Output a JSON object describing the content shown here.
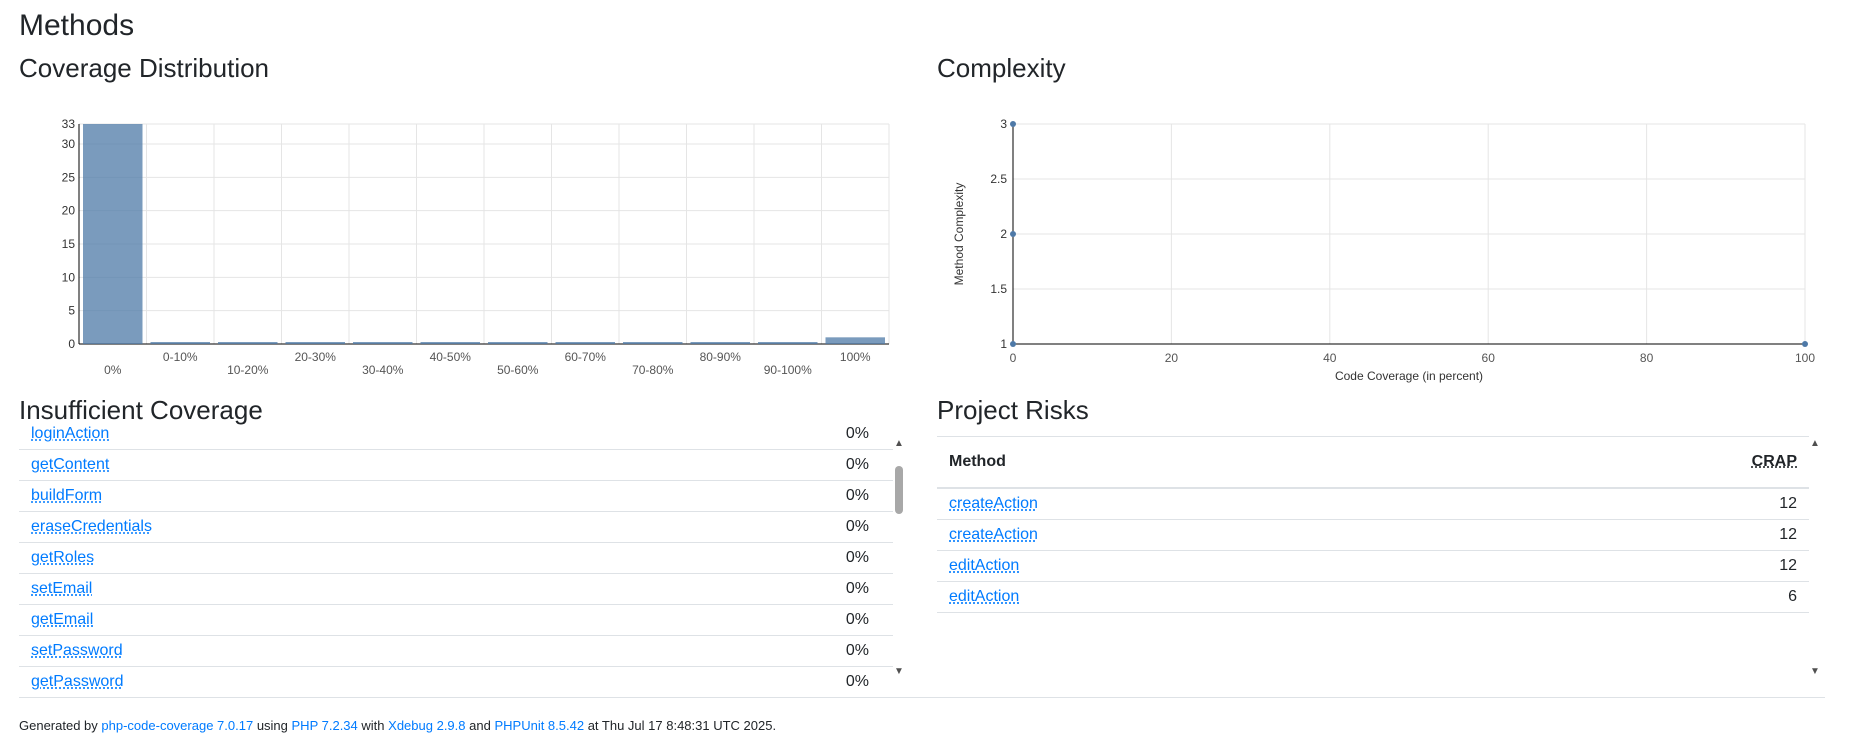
{
  "page": {
    "title": "Methods"
  },
  "coverage_distribution": {
    "heading": "Coverage Distribution"
  },
  "complexity": {
    "heading": "Complexity"
  },
  "insufficient_coverage": {
    "heading": "Insufficient Coverage",
    "rows": [
      {
        "name": "loginAction",
        "value": "0%"
      },
      {
        "name": "getContent",
        "value": "0%"
      },
      {
        "name": "buildForm",
        "value": "0%"
      },
      {
        "name": "eraseCredentials",
        "value": "0%"
      },
      {
        "name": "getRoles",
        "value": "0%"
      },
      {
        "name": "setEmail",
        "value": "0%"
      },
      {
        "name": "getEmail",
        "value": "0%"
      },
      {
        "name": "setPassword",
        "value": "0%"
      },
      {
        "name": "getPassword",
        "value": "0%"
      }
    ]
  },
  "project_risks": {
    "heading": "Project Risks",
    "col_method": "Method",
    "col_crap": "CRAP",
    "rows": [
      {
        "name": "createAction",
        "value": "12"
      },
      {
        "name": "createAction",
        "value": "12"
      },
      {
        "name": "editAction",
        "value": "12"
      },
      {
        "name": "editAction",
        "value": "6"
      }
    ]
  },
  "footer": {
    "prefix": "Generated by",
    "tool": "php-code-coverage 7.0.17",
    "using": "using",
    "php": "PHP 7.2.34",
    "with": "with",
    "xdebug": "Xdebug 2.9.8",
    "and": "and",
    "phpunit": "PHPUnit 8.5.42",
    "suffix": "at Thu Jul 17 8:48:31 UTC 2025."
  },
  "chart_data": [
    {
      "type": "bar",
      "title": "Coverage Distribution",
      "categories": [
        "0%",
        "0-10%",
        "10-20%",
        "20-30%",
        "30-40%",
        "40-50%",
        "50-60%",
        "60-70%",
        "70-80%",
        "80-90%",
        "90-100%",
        "100%"
      ],
      "values": [
        33,
        0,
        0,
        0,
        0,
        0,
        0,
        0,
        0,
        0,
        0,
        1
      ],
      "yticks": [
        0,
        5,
        10,
        15,
        20,
        25,
        30,
        33
      ],
      "ylim": [
        0,
        33
      ],
      "grid": true,
      "color": "#4e79a7"
    },
    {
      "type": "scatter",
      "title": "Complexity",
      "xlabel": "Code Coverage (in percent)",
      "ylabel": "Method Complexity",
      "xlim": [
        0,
        100
      ],
      "ylim": [
        1,
        3
      ],
      "xticks": [
        0,
        20,
        40,
        60,
        80,
        100
      ],
      "yticks": [
        "1",
        "1.5",
        "2",
        "2.5",
        "3"
      ],
      "points": [
        {
          "x": 0,
          "y": 1
        },
        {
          "x": 0,
          "y": 2
        },
        {
          "x": 0,
          "y": 3
        },
        {
          "x": 100,
          "y": 1
        }
      ],
      "grid": true,
      "color": "#4e79a7"
    }
  ]
}
